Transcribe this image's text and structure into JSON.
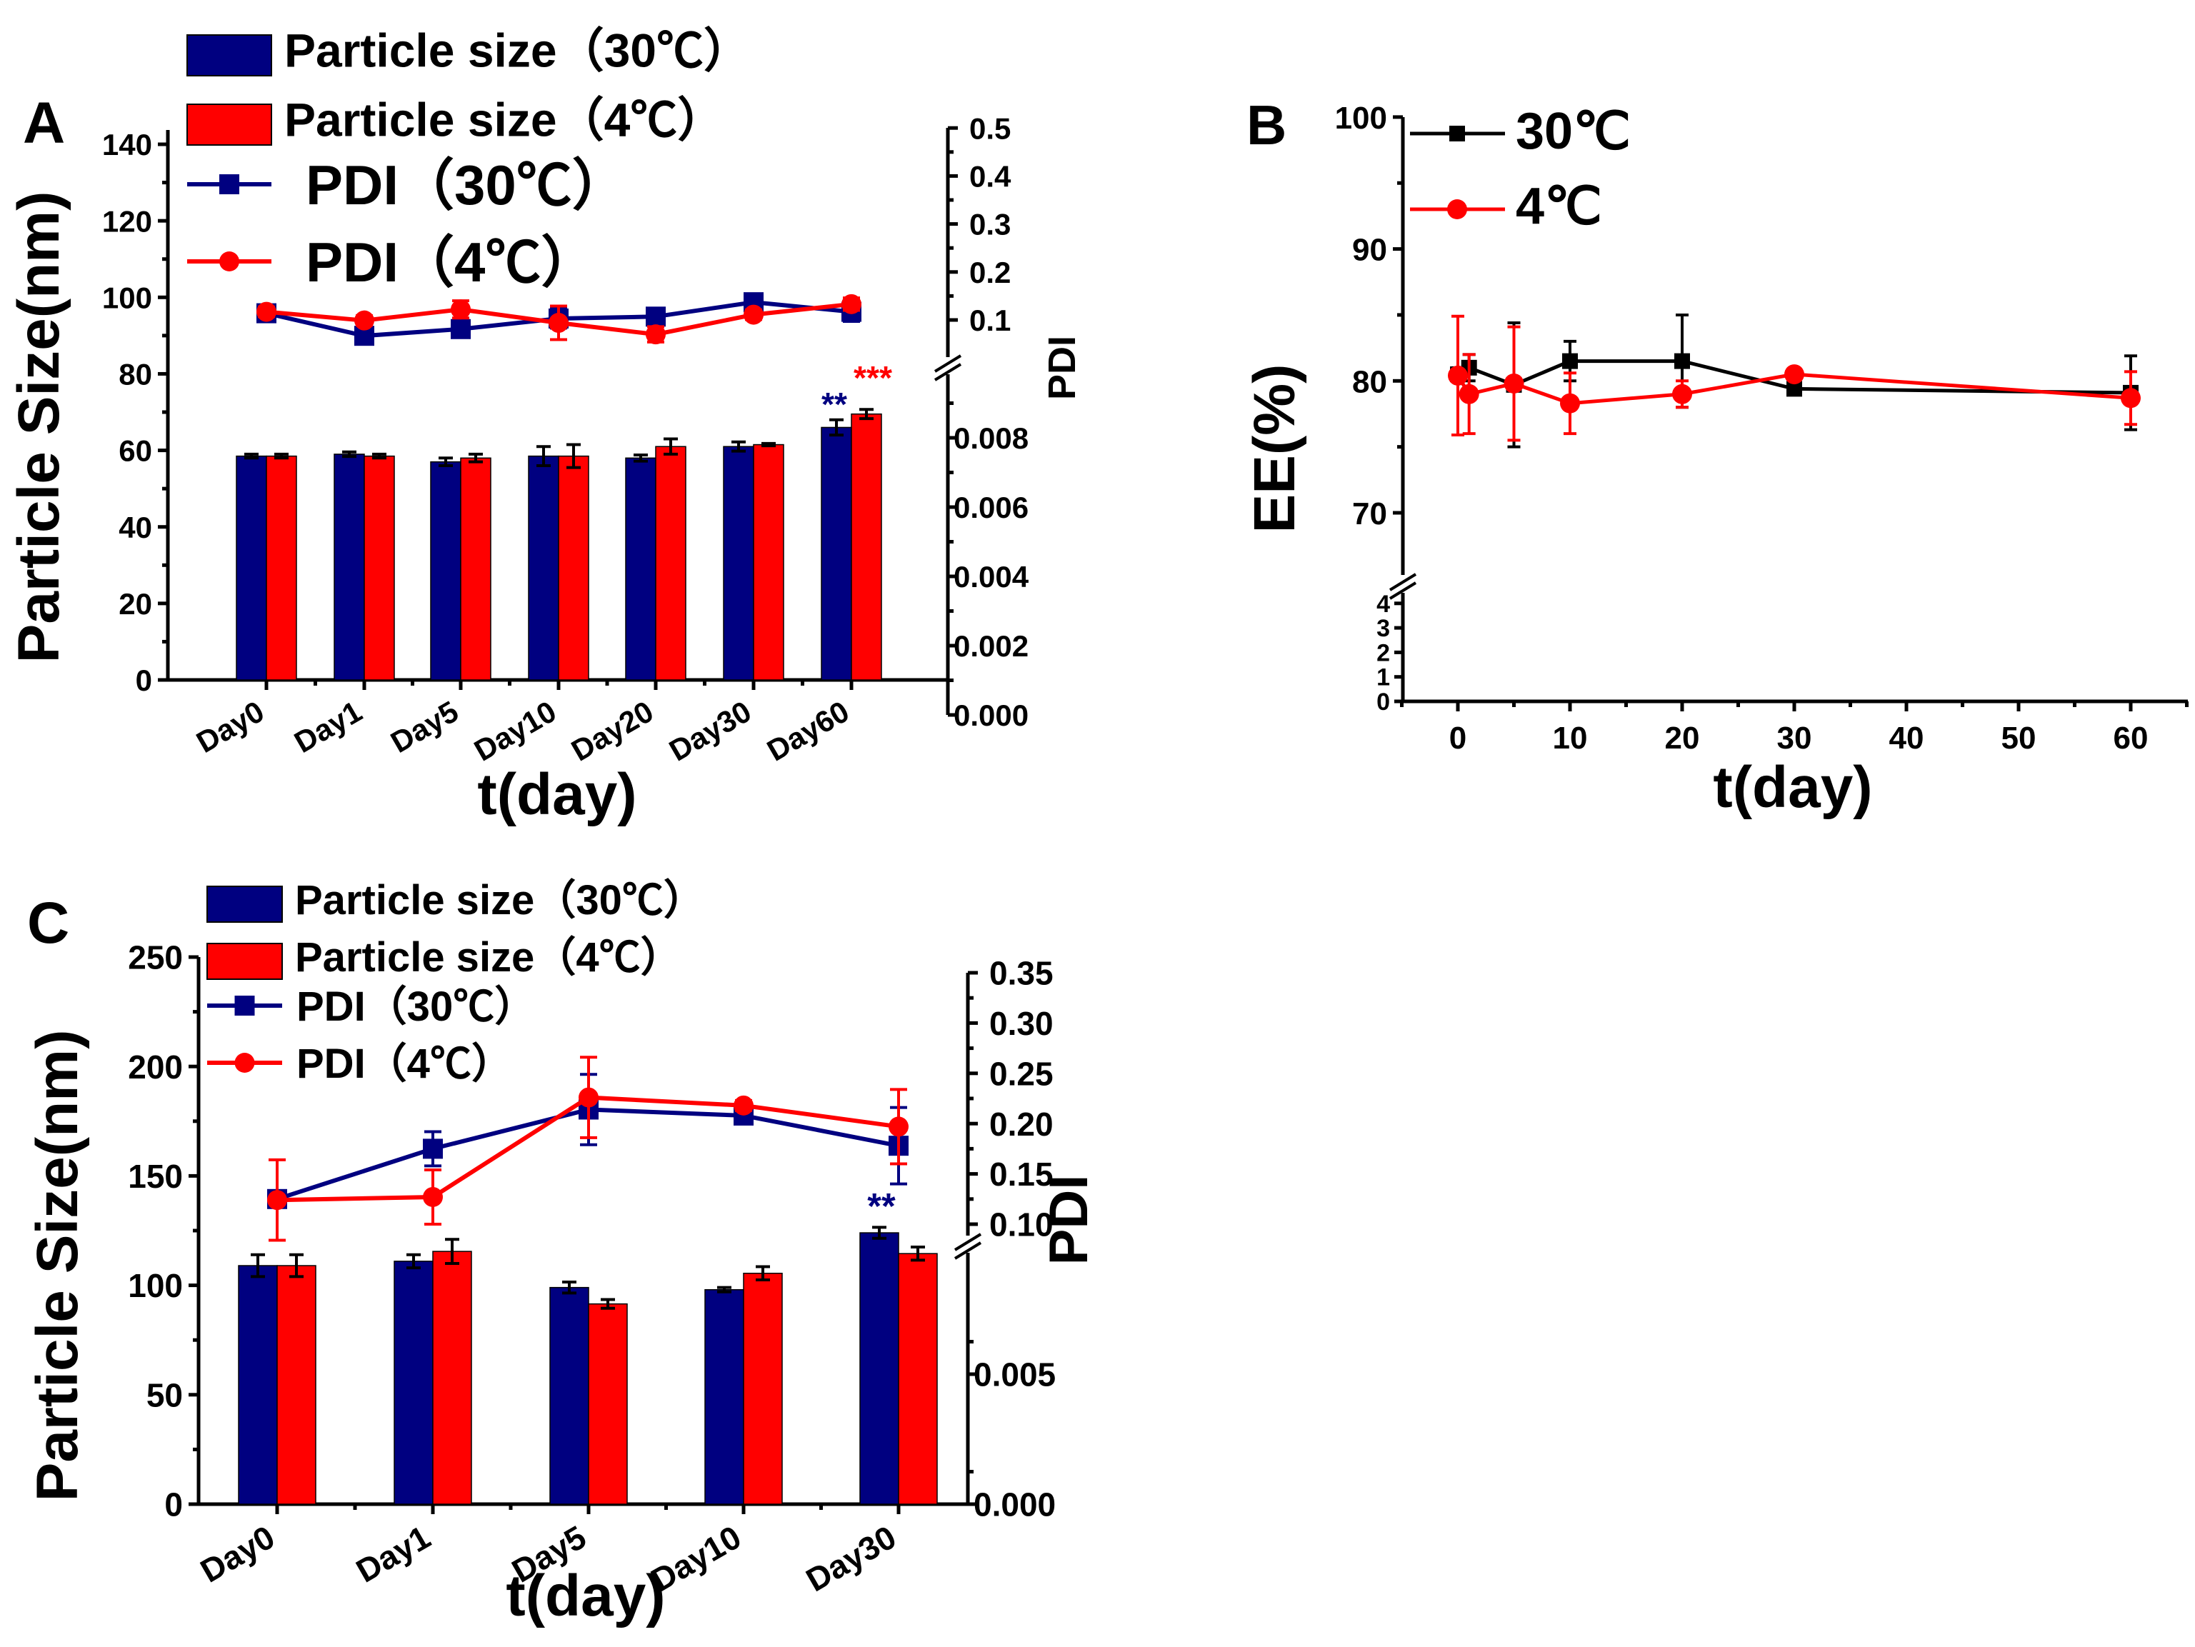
{
  "chart_data": [
    {
      "panel_label": "A",
      "type": "bar",
      "categories": [
        "Day0",
        "Day1",
        "Day5",
        "Day10",
        "Day20",
        "Day30",
        "Day60"
      ],
      "xlabel": "t(day)",
      "ylabel": "Particle Size(nm)",
      "ylabel_right": "PDI",
      "ylim": [
        0,
        140
      ],
      "yticks": [
        "0",
        "20",
        "40",
        "60",
        "80",
        "100",
        "120",
        "140"
      ],
      "yticks_right_upper": [
        "0.1",
        "0.2",
        "0.3",
        "0.4",
        "0.5"
      ],
      "yticks_right_lower": [
        "0.000",
        "0.002",
        "0.004",
        "0.006",
        "0.008"
      ],
      "legend": [
        "Particle size（30℃）",
        "Particle size（4℃）",
        "PDI（30℃）",
        "PDI（4℃）"
      ],
      "series": [
        {
          "name": "Particle size（30℃）",
          "kind": "bar",
          "color": "#000080",
          "values": [
            58.5,
            59,
            57,
            58.5,
            58,
            61,
            66
          ],
          "errors": [
            0.5,
            0.6,
            1,
            2.5,
            0.8,
            1.2,
            2
          ]
        },
        {
          "name": "Particle size（4℃）",
          "kind": "bar",
          "color": "#ff0000",
          "values": [
            58.5,
            58.5,
            58,
            58.5,
            61,
            61.5,
            69.5
          ],
          "errors": [
            0.5,
            0.5,
            1,
            3,
            2,
            0.3,
            1.2
          ]
        },
        {
          "name": "PDI（30℃）",
          "kind": "line",
          "marker": "square",
          "axis": "right",
          "color": "#000080",
          "values": [
            0.114,
            0.067,
            0.081,
            0.103,
            0.107,
            0.137,
            0.117
          ],
          "errors": [
            0.01,
            0.012,
            0.012,
            0.02,
            0.008,
            0.006,
            0.02
          ]
        },
        {
          "name": "PDI（4℃）",
          "kind": "line",
          "marker": "circle",
          "axis": "right",
          "color": "#ff0000",
          "values": [
            0.117,
            0.099,
            0.122,
            0.094,
            0.07,
            0.111,
            0.133
          ],
          "errors": [
            0.01,
            0.01,
            0.018,
            0.035,
            0.016,
            0.01,
            0.013
          ]
        }
      ],
      "annotations": [
        {
          "text": "**",
          "color": "#000080",
          "category": "Day60"
        },
        {
          "text": "***",
          "color": "#ff0000",
          "category": "Day60"
        }
      ]
    },
    {
      "panel_label": "B",
      "type": "line",
      "xlabel": "t(day)",
      "ylabel": "EE(%)",
      "xlim": [
        -5,
        65
      ],
      "xticks": [
        "0",
        "10",
        "20",
        "30",
        "40",
        "50",
        "60"
      ],
      "yticks_upper": [
        "70",
        "80",
        "90",
        "100"
      ],
      "yticks_lower": [
        "0",
        "1",
        "2",
        "3",
        "4"
      ],
      "legend": [
        "30℃",
        "4℃"
      ],
      "series": [
        {
          "name": "30℃",
          "marker": "square",
          "color": "#000000",
          "x": [
            0,
            1,
            5,
            10,
            20,
            30,
            60
          ],
          "values": [
            80.5,
            81,
            79.7,
            81.5,
            81.5,
            79.4,
            79.1
          ],
          "errors": [
            0.5,
            1,
            4.7,
            1.5,
            3.5,
            0.3,
            2.8
          ]
        },
        {
          "name": "4℃",
          "marker": "circle",
          "color": "#ff0000",
          "x": [
            0,
            1,
            5,
            10,
            20,
            30,
            60
          ],
          "values": [
            80.4,
            79,
            79.8,
            78.3,
            79,
            80.5,
            78.7
          ],
          "errors": [
            4.5,
            3,
            4.3,
            2.3,
            1,
            0.3,
            2
          ]
        }
      ]
    },
    {
      "panel_label": "C",
      "type": "bar",
      "categories": [
        "Day0",
        "Day1",
        "Day5",
        "Day10",
        "Day30"
      ],
      "xlabel": "t(day)",
      "ylabel": "Particle Size(nm)",
      "ylabel_right": "PDI",
      "ylim": [
        0,
        250
      ],
      "yticks": [
        "0",
        "50",
        "100",
        "150",
        "200",
        "250"
      ],
      "yticks_right_upper": [
        "0.10",
        "0.15",
        "0.20",
        "0.25",
        "0.30",
        "0.35"
      ],
      "yticks_right_lower": [
        "0.000",
        "0.005"
      ],
      "legend": [
        "Particle size（30℃）",
        "Particle size（4℃）",
        "PDI（30℃）",
        "PDI（4℃）"
      ],
      "series": [
        {
          "name": "Particle size（30℃）",
          "kind": "bar",
          "color": "#000080",
          "values": [
            109,
            111,
            99,
            98,
            124
          ],
          "errors": [
            5,
            3,
            2.5,
            1,
            2.5
          ]
        },
        {
          "name": "Particle size（4℃）",
          "kind": "bar",
          "color": "#ff0000",
          "values": [
            109,
            115.5,
            91.5,
            105.5,
            114.5
          ],
          "errors": [
            5,
            5.5,
            2,
            3,
            3
          ]
        },
        {
          "name": "PDI（30℃）",
          "kind": "line",
          "marker": "square",
          "axis": "right",
          "color": "#000080",
          "values": [
            0.125,
            0.175,
            0.214,
            0.208,
            0.178
          ],
          "errors": [
            0.004,
            0.017,
            0.035,
            0.008,
            0.038
          ]
        },
        {
          "name": "PDI（4℃）",
          "kind": "line",
          "marker": "circle",
          "axis": "right",
          "color": "#ff0000",
          "values": [
            0.124,
            0.127,
            0.226,
            0.218,
            0.197
          ],
          "errors": [
            0.04,
            0.027,
            0.04,
            0.005,
            0.037
          ]
        }
      ],
      "annotations": [
        {
          "text": "**",
          "color": "#000080",
          "category": "Day30"
        }
      ]
    }
  ]
}
